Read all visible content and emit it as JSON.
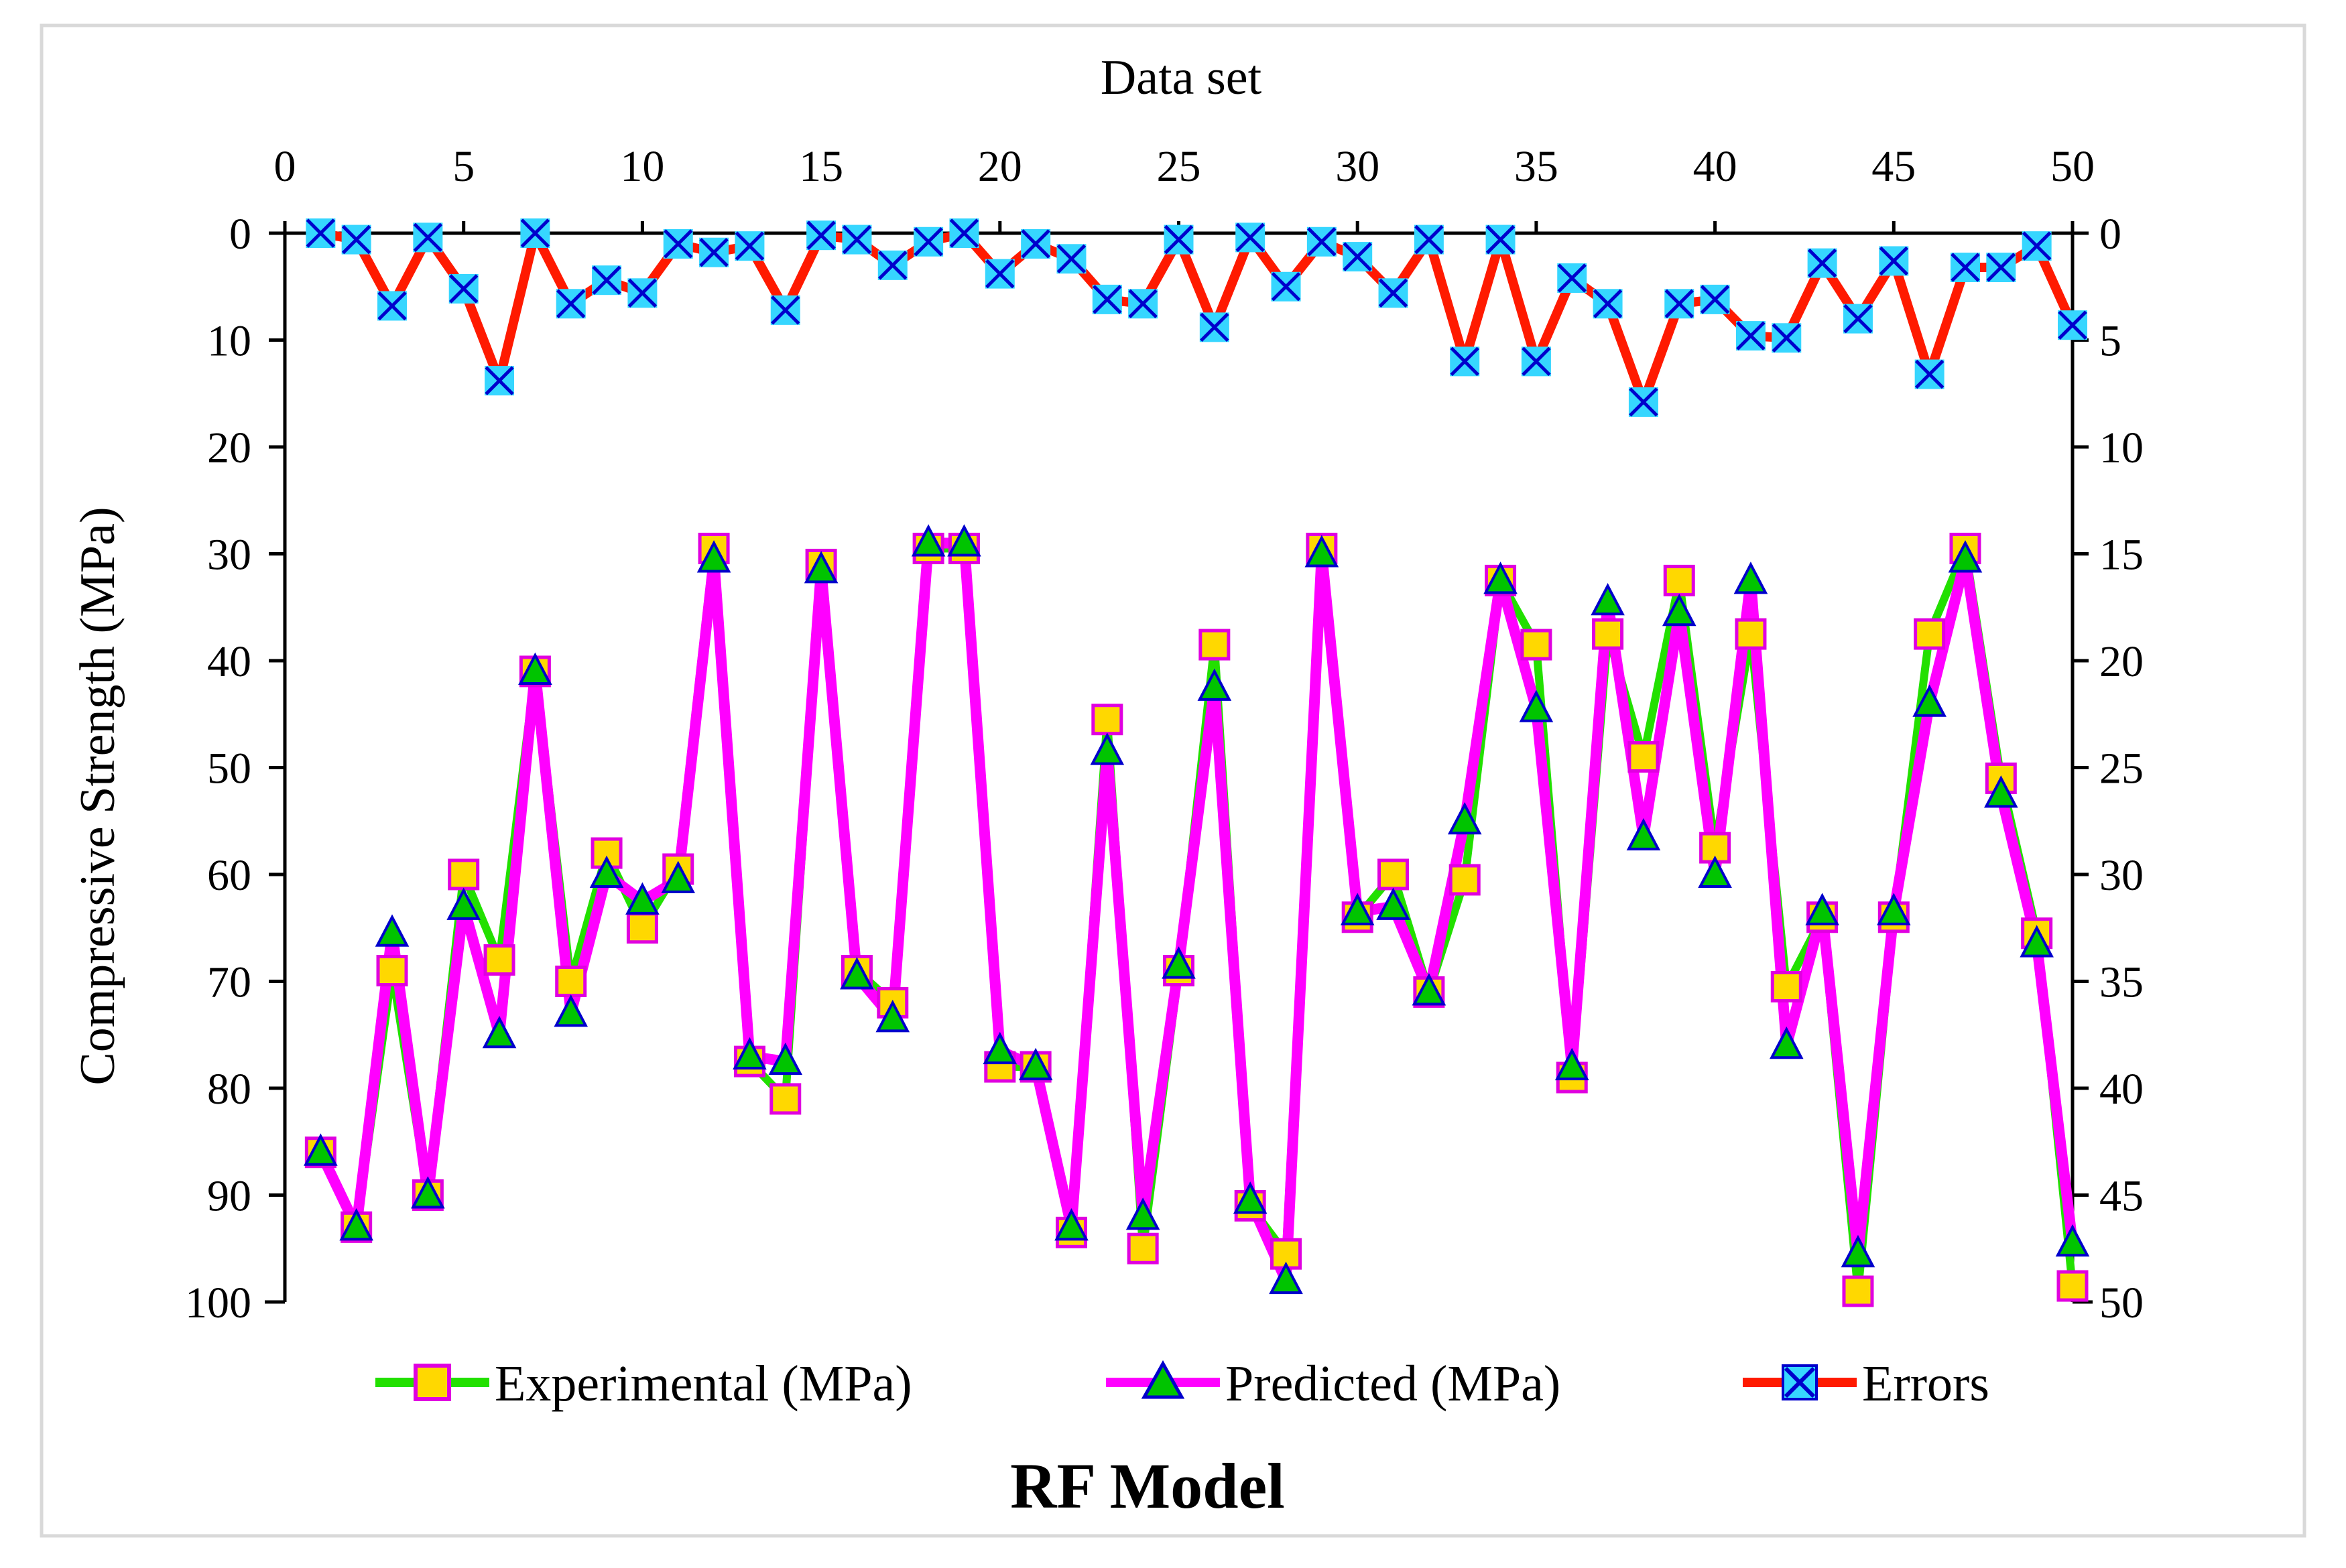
{
  "chart_data": {
    "type": "line",
    "title": "RF Model",
    "xlabel": "Data set",
    "ylabel": "Compressive Strength (MPa)",
    "xlim": [
      0,
      50
    ],
    "x_ticks": [
      "0",
      "5",
      "10",
      "15",
      "20",
      "25",
      "30",
      "35",
      "40",
      "45",
      "50"
    ],
    "ylim_left": [
      0,
      100
    ],
    "y_ticks_left": [
      "0",
      "10",
      "20",
      "30",
      "40",
      "50",
      "60",
      "70",
      "80",
      "90",
      "100"
    ],
    "ylim_right": [
      0,
      50
    ],
    "y_ticks_right": [
      "0",
      "5",
      "10",
      "15",
      "20",
      "25",
      "30",
      "35",
      "40",
      "45",
      "50"
    ],
    "y_axis_inverted": true,
    "x_axis_position": "top",
    "legend_position": "bottom",
    "x": [
      1,
      2,
      3,
      4,
      5,
      6,
      7,
      8,
      9,
      10,
      11,
      12,
      13,
      14,
      15,
      16,
      17,
      18,
      19,
      20,
      21,
      22,
      23,
      24,
      25,
      26,
      27,
      28,
      29,
      30,
      31,
      32,
      33,
      34,
      35,
      36,
      37,
      38,
      39,
      40,
      41,
      42,
      43,
      44,
      45,
      46,
      47,
      48,
      49,
      50
    ],
    "series": [
      {
        "name": "Experimental (MPa)",
        "axis": "left",
        "line_color": "#22e000",
        "marker": "square",
        "marker_fill": "#ffd800",
        "marker_edge": "#e000e0",
        "values": [
          86,
          93,
          69,
          90,
          60,
          68,
          41,
          70,
          58,
          65,
          59.5,
          29.5,
          77.5,
          81,
          31,
          69,
          72,
          29.5,
          29.5,
          78,
          78,
          93.5,
          45.5,
          95,
          69,
          38.5,
          91,
          95.5,
          29.5,
          64,
          60,
          71,
          60.5,
          32.5,
          38.5,
          79,
          37.5,
          49,
          32.5,
          57.5,
          37.5,
          70.5,
          64,
          99,
          64,
          37.5,
          29.5,
          51,
          65.5,
          98.5
        ]
      },
      {
        "name": "Predicted (MPa)",
        "axis": "left",
        "line_color": "#ff00ff",
        "marker": "triangle",
        "marker_fill": "#00c400",
        "marker_edge": "#0000cc",
        "values": [
          86,
          93,
          65.5,
          90,
          63,
          75,
          41,
          73,
          60,
          62.5,
          60.5,
          30.5,
          77,
          77.5,
          31.5,
          69.5,
          73.5,
          29,
          29,
          76.5,
          78,
          93,
          48.5,
          92,
          68.5,
          42.5,
          90.5,
          98,
          30,
          63.5,
          63,
          71,
          55,
          32.5,
          44.5,
          78,
          34.5,
          56.5,
          35.5,
          60,
          32.5,
          76,
          63.5,
          95.5,
          63.5,
          44,
          30.5,
          52.5,
          66.5,
          94.5
        ]
      },
      {
        "name": "Errors",
        "axis": "right",
        "line_color": "#ff1a00",
        "marker": "x",
        "marker_fill": "#36d6ff",
        "marker_edge": "#0000cc",
        "values": [
          0,
          0.3,
          3.4,
          0.2,
          2.6,
          6.9,
          0,
          3.3,
          2.2,
          2.8,
          0.5,
          0.9,
          0.6,
          3.6,
          0.1,
          0.3,
          1.5,
          0.4,
          0,
          1.9,
          0.5,
          1.2,
          3.1,
          3.3,
          0.3,
          4.4,
          0.2,
          2.5,
          0.4,
          1.1,
          2.8,
          0.3,
          6,
          0.3,
          6,
          2.1,
          3.3,
          7.9,
          3.3,
          3.1,
          4.8,
          4.9,
          1.4,
          4,
          1.3,
          6.6,
          1.6,
          1.6,
          0.6,
          4.3
        ]
      }
    ]
  }
}
